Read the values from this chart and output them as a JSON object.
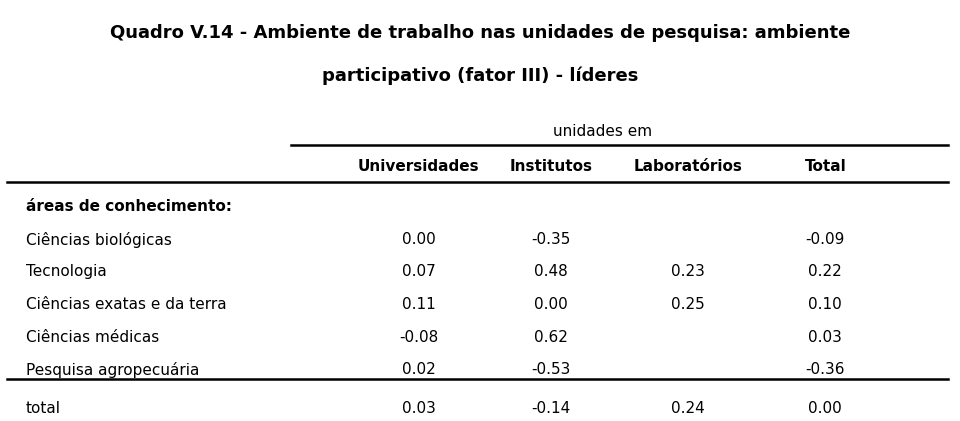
{
  "title_line1": "Quadro V.14 - Ambiente de trabalho nas unidades de pesquisa: ambiente",
  "title_line2": "participativo (fator III) - líderes",
  "subheader": "unidades em",
  "col_headers": [
    "Universidades",
    "Institutos",
    "Laboratórios",
    "Total"
  ],
  "row_label_header": "áreas de conhecimento:",
  "rows": [
    {
      "label": "Ciências biológicas",
      "values": [
        "0.00",
        "-0.35",
        "",
        "-0.09"
      ]
    },
    {
      "label": "Tecnologia",
      "values": [
        "0.07",
        "0.48",
        "0.23",
        "0.22"
      ]
    },
    {
      "label": "Ciências exatas e da terra",
      "values": [
        "0.11",
        "0.00",
        "0.25",
        "0.10"
      ]
    },
    {
      "label": "Ciências médicas",
      "values": [
        "-0.08",
        "0.62",
        "",
        "0.03"
      ]
    },
    {
      "label": "Pesquisa agropecuária",
      "values": [
        "0.02",
        "-0.53",
        "",
        "-0.36"
      ]
    }
  ],
  "total_row": {
    "label": "total",
    "values": [
      "0.03",
      "-0.14",
      "0.24",
      "0.00"
    ]
  },
  "bg_color": "#ffffff",
  "text_color": "#000000",
  "title_fontsize": 13,
  "header_fontsize": 11,
  "body_fontsize": 11
}
